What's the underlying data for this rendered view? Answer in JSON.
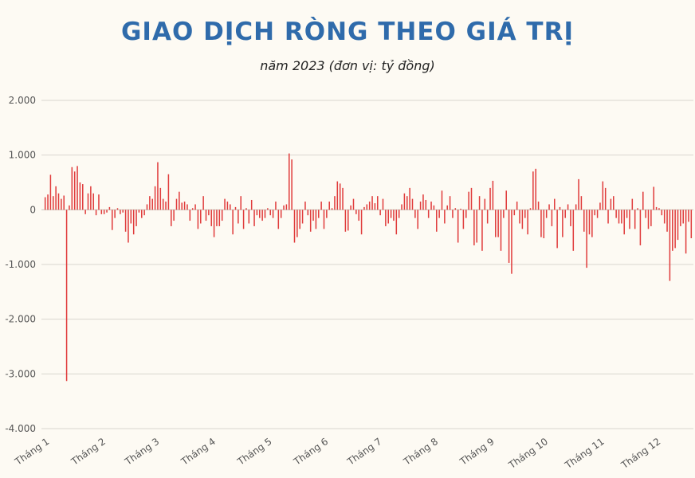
{
  "title": "GIAO DỊCH RÒNG THEO GIÁ TRỊ",
  "subtitle": "năm 2023 (đơn vị: tỷ đồng)",
  "colors": {
    "bar": "#e03b3b",
    "title": "#2f6bab",
    "grid": "#d9d6cf",
    "background": "#fdfaf3"
  },
  "chart_data": {
    "type": "bar",
    "title": "GIAO DỊCH RÒNG THEO GIÁ TRỊ",
    "subtitle": "năm 2023 (đơn vị: tỷ đồng)",
    "ylim": [
      -4000,
      2000
    ],
    "yticks": [
      2000,
      1000,
      0,
      -1000,
      -2000,
      -3000,
      -4000
    ],
    "ytick_labels": [
      "2.000",
      "1.000",
      "0",
      "-1.000",
      "-2.000",
      "-3.000",
      "-4.000"
    ],
    "grid": true,
    "xtick_labels": [
      "Tháng 1",
      "Tháng 2",
      "Tháng 3",
      "Tháng 4",
      "Tháng 5",
      "Tháng 6",
      "Tháng 7",
      "Tháng 8",
      "Tháng 9",
      "Tháng 10",
      "Tháng 11",
      "Tháng 12"
    ],
    "xtick_positions": [
      0,
      21,
      41,
      62,
      83,
      104,
      124,
      145,
      166,
      186,
      207,
      228
    ],
    "values": [
      230,
      280,
      640,
      250,
      430,
      300,
      200,
      260,
      -3130,
      80,
      780,
      700,
      800,
      500,
      470,
      -80,
      300,
      430,
      300,
      -100,
      280,
      -80,
      -80,
      -50,
      50,
      -370,
      -150,
      30,
      -80,
      -50,
      -400,
      -600,
      -250,
      -450,
      -300,
      -50,
      -150,
      -100,
      100,
      250,
      200,
      430,
      870,
      400,
      200,
      150,
      650,
      -300,
      -200,
      200,
      330,
      130,
      150,
      100,
      -200,
      30,
      100,
      -350,
      -250,
      250,
      -200,
      -100,
      -300,
      -500,
      -300,
      -300,
      -200,
      200,
      150,
      100,
      -450,
      50,
      -250,
      250,
      -350,
      30,
      -250,
      180,
      -300,
      -100,
      -150,
      -200,
      -150,
      30,
      -100,
      -150,
      150,
      -350,
      -150,
      80,
      100,
      1030,
      920,
      -600,
      -500,
      -350,
      -250,
      150,
      -100,
      -400,
      -200,
      -350,
      -150,
      150,
      -350,
      -150,
      150,
      30,
      250,
      520,
      480,
      400,
      -400,
      -380,
      80,
      200,
      -80,
      -200,
      -450,
      50,
      100,
      150,
      250,
      120,
      250,
      -100,
      200,
      -300,
      -250,
      -150,
      -200,
      -450,
      -150,
      100,
      300,
      250,
      400,
      200,
      -150,
      -350,
      150,
      280,
      180,
      -150,
      150,
      80,
      -400,
      -150,
      350,
      -250,
      80,
      250,
      -150,
      30,
      -600,
      20,
      -350,
      -150,
      330,
      400,
      -650,
      -600,
      250,
      -750,
      200,
      -250,
      400,
      530,
      -500,
      -500,
      -750,
      -150,
      350,
      -970,
      -1170,
      -100,
      150,
      -250,
      -350,
      -150,
      -450,
      30,
      700,
      750,
      150,
      -500,
      -520,
      -150,
      100,
      -300,
      200,
      -700,
      50,
      -500,
      -150,
      100,
      -300,
      -750,
      100,
      560,
      250,
      -400,
      -1060,
      -450,
      -500,
      -100,
      -150,
      130,
      520,
      400,
      -250,
      200,
      250,
      -150,
      -250,
      -250,
      -450,
      -150,
      -350,
      200,
      -350,
      30,
      -650,
      330,
      -150,
      -350,
      -300,
      420,
      50,
      30,
      -100,
      -250,
      -400,
      -1300,
      -750,
      -700,
      -550,
      -300,
      -250,
      -800,
      -220,
      -520
    ]
  }
}
